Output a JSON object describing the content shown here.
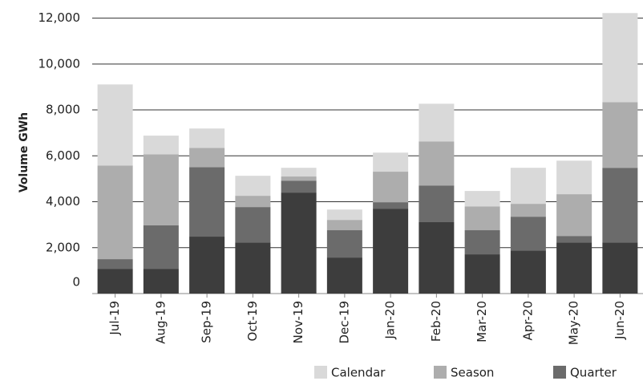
{
  "chart_data": {
    "type": "stacked_bar",
    "y_label": "Volume GWh",
    "categories": [
      "Jul-19",
      "Aug-19",
      "Sep-19",
      "Oct-19",
      "Nov-19",
      "Dec-19",
      "Jan-20",
      "Feb-20",
      "Mar-20",
      "Apr-20",
      "May-20",
      "Jun-20"
    ],
    "series": [
      {
        "color": "#3d3d3d",
        "values": [
          1080,
          1080,
          2480,
          2230,
          4400,
          1570,
          3700,
          3110,
          1710,
          1880,
          2230,
          2230
        ]
      },
      {
        "name": "Quarter",
        "color": "#6b6b6b",
        "values": [
          420,
          1890,
          3030,
          1540,
          520,
          1190,
          280,
          1600,
          1050,
          1470,
          280,
          3250
        ]
      },
      {
        "name": "Season",
        "color": "#adadad",
        "values": [
          4080,
          3100,
          840,
          490,
          180,
          450,
          1330,
          1920,
          1040,
          560,
          1820,
          2860
        ]
      },
      {
        "name": "Calendar",
        "color": "#d9d9d9",
        "values": [
          3530,
          810,
          840,
          870,
          380,
          450,
          830,
          1640,
          670,
          1570,
          1460,
          3880
        ]
      }
    ],
    "ylim": [
      0,
      12300
    ],
    "yticks": [
      0,
      {
        "value": 2000,
        "label": "2,000"
      },
      {
        "value": 4000,
        "label": "4,000"
      },
      {
        "value": 6000,
        "label": "6,000"
      },
      {
        "value": 8000,
        "label": "8,000"
      },
      {
        "value": 10000,
        "label": "10,000"
      },
      {
        "value": 12000,
        "label": "12,000"
      }
    ],
    "grid": true
  }
}
